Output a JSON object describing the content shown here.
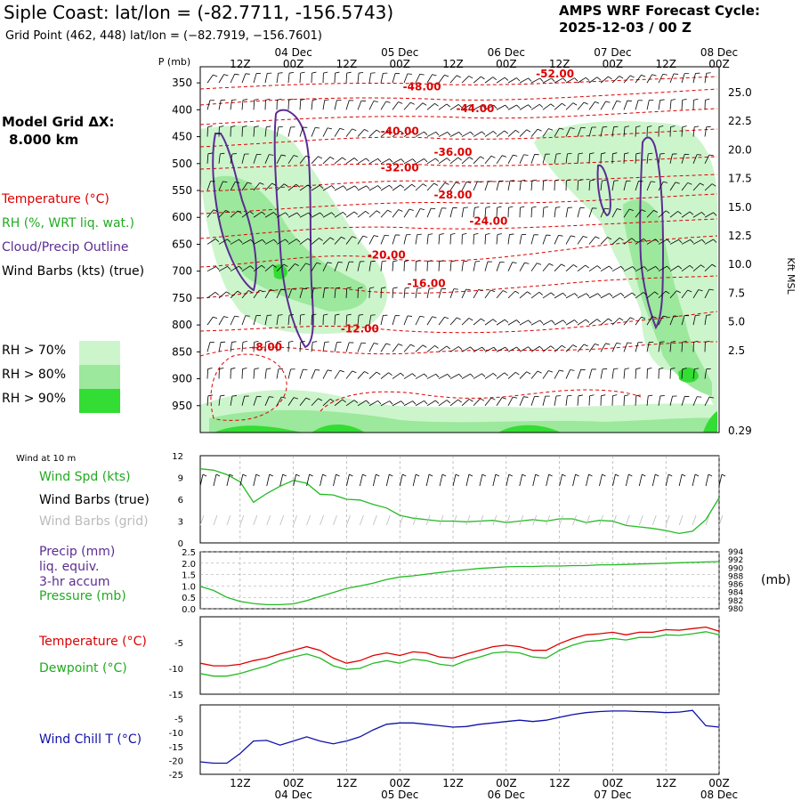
{
  "header": {
    "title": "Siple Coast:  lat/lon = (-82.7711, -156.5743)",
    "subtitle": "Grid Point (462, 448) lat/lon = (−82.7919, −156.7601)",
    "cycle_line1": "AMPS WRF Forecast Cycle:",
    "cycle_line2": "2025-12-03 / 00  Z",
    "grid_label_line1": "Model Grid ΔX:",
    "grid_label_line2": "8.000 km"
  },
  "legend": {
    "temperature": "Temperature (°C)",
    "rh": "RH (%, WRT liq. wat.)",
    "cloud": "Cloud/Precip Outline",
    "wind": "Wind Barbs (kts) (true)",
    "rh70": "RH > 70%",
    "rh80": "RH > 80%",
    "rh90": "RH > 90%"
  },
  "panel_labels": {
    "wind10": "Wind at 10 m",
    "wind_spd": "Wind Spd (kts)",
    "barbs_true": "Wind Barbs (true)",
    "barbs_grid": "Wind Barbs (grid)",
    "precip1": "Precip (mm)",
    "precip2": "liq. equiv.",
    "precip3": "3-hr accum",
    "pressure": "Pressure (mb)",
    "pressure_unit": "(mb)",
    "temperature": "Temperature (°C)",
    "dewpoint": "Dewpoint (°C)",
    "windchill": "Wind Chill T (°C)"
  },
  "colors": {
    "temp": "#dd0000",
    "rh_line": "#22bb22",
    "cloud": "#5b2d91",
    "windchill": "#1010aa",
    "rh70": "#ccf5cc",
    "rh80": "#9ce89c",
    "rh90": "#33dd33",
    "grid": "#999999",
    "barb_grid": "#bbbbbb"
  },
  "chart_data": {
    "time_axis": {
      "tick_hours": [
        12,
        24,
        36,
        48,
        60,
        72,
        84,
        96,
        108,
        120
      ],
      "tick_labels": [
        "12Z",
        "00Z",
        "12Z",
        "00Z",
        "12Z",
        "00Z",
        "12Z",
        "00Z",
        "12Z",
        "00Z"
      ],
      "date_labels": [
        {
          "hour": 24,
          "label": "04 Dec"
        },
        {
          "hour": 48,
          "label": "05 Dec"
        },
        {
          "hour": 72,
          "label": "06 Dec"
        },
        {
          "hour": 96,
          "label": "07 Dec"
        },
        {
          "hour": 120,
          "label": "08 Dec"
        }
      ],
      "range_hours": [
        3,
        120
      ]
    },
    "profile": {
      "type": "time-height",
      "ylabel": "P (mb)",
      "right_label": "Kft MSL",
      "pressure_ticks": [
        350,
        400,
        450,
        500,
        550,
        600,
        650,
        700,
        750,
        800,
        850,
        900,
        950
      ],
      "kft_ticks": [
        "25.0",
        "22.5",
        "20.0",
        "17.5",
        "15.0",
        "12.5",
        "10.0",
        "7.5",
        "5.0",
        "2.5",
        "0.29"
      ],
      "temperature_contours": [
        {
          "label": "-52.00",
          "hour": 83,
          "p": 333
        },
        {
          "label": "-48.00",
          "hour": 53,
          "p": 357
        },
        {
          "label": "-44.00",
          "hour": 65,
          "p": 398
        },
        {
          "label": "-40.00",
          "hour": 48,
          "p": 440
        },
        {
          "label": "-36.00",
          "hour": 60,
          "p": 479
        },
        {
          "label": "-32.00",
          "hour": 48,
          "p": 508
        },
        {
          "label": "-28.00",
          "hour": 60,
          "p": 558
        },
        {
          "label": "-24.00",
          "hour": 68,
          "p": 607
        },
        {
          "label": "-20.00",
          "hour": 45,
          "p": 670
        },
        {
          "label": "-16.00",
          "hour": 54,
          "p": 723
        },
        {
          "label": "-12.00",
          "hour": 39,
          "p": 807
        },
        {
          "label": "-8.00",
          "hour": 18,
          "p": 841
        }
      ]
    },
    "wind10": {
      "type": "line",
      "ylabel": "Wind Spd (kts)",
      "ylim": [
        0,
        12
      ],
      "yticks": [
        0,
        3,
        6,
        9,
        12
      ],
      "hours": [
        3,
        6,
        9,
        12,
        15,
        18,
        21,
        24,
        27,
        30,
        33,
        36,
        39,
        42,
        45,
        48,
        51,
        54,
        57,
        60,
        63,
        66,
        69,
        72,
        75,
        78,
        81,
        84,
        87,
        90,
        93,
        96,
        99,
        102,
        105,
        108,
        111,
        114,
        117,
        120
      ],
      "speed": [
        10.2,
        10.0,
        9.4,
        8.4,
        5.6,
        6.8,
        7.8,
        8.6,
        8.2,
        6.7,
        6.6,
        6.0,
        5.9,
        5.3,
        4.8,
        3.8,
        3.4,
        3.2,
        3.0,
        3.0,
        2.9,
        3.0,
        3.1,
        2.8,
        3.0,
        3.2,
        3.0,
        3.3,
        3.3,
        2.8,
        3.1,
        3.0,
        2.4,
        2.2,
        2.0,
        1.7,
        1.3,
        1.6,
        3.2,
        6.2
      ]
    },
    "precip_pressure": {
      "type": "line",
      "precip_ylabel": "Precip (mm)",
      "precip_ylim": [
        0,
        2.5
      ],
      "precip_ticks": [
        "0.0",
        "0.5",
        "1.0",
        "1.5",
        "2.0",
        "2.5"
      ],
      "pressure_ylim": [
        980,
        994
      ],
      "pressure_ticks": [
        "980",
        "982",
        "984",
        "986",
        "988",
        "990",
        "992",
        "994"
      ],
      "hours": [
        3,
        6,
        9,
        12,
        15,
        18,
        21,
        24,
        27,
        30,
        33,
        36,
        39,
        42,
        45,
        48,
        51,
        54,
        57,
        60,
        63,
        66,
        69,
        72,
        75,
        78,
        81,
        84,
        87,
        90,
        93,
        96,
        99,
        102,
        105,
        108,
        111,
        114,
        117,
        120
      ],
      "pressure": [
        985.5,
        984.5,
        982.8,
        981.8,
        981.3,
        981.0,
        981.0,
        981.2,
        982.0,
        983.0,
        984.0,
        985.0,
        985.6,
        986.3,
        987.2,
        987.8,
        988.1,
        988.5,
        988.9,
        989.3,
        989.6,
        989.9,
        990.1,
        990.3,
        990.4,
        990.4,
        990.5,
        990.5,
        990.6,
        990.6,
        990.8,
        990.8,
        990.9,
        991.0,
        991.1,
        991.2,
        991.3,
        991.4,
        991.5,
        991.6
      ]
    },
    "temp_dew": {
      "type": "line",
      "ylim": [
        -15,
        0
      ],
      "yticks": [
        -15,
        -10,
        -5
      ],
      "hours": [
        3,
        6,
        9,
        12,
        15,
        18,
        21,
        24,
        27,
        30,
        33,
        36,
        39,
        42,
        45,
        48,
        51,
        54,
        57,
        60,
        63,
        66,
        69,
        72,
        75,
        78,
        81,
        84,
        87,
        90,
        93,
        96,
        99,
        102,
        105,
        108,
        111,
        114,
        117,
        120
      ],
      "temperature": [
        -9.0,
        -9.5,
        -9.5,
        -9.2,
        -8.5,
        -8.0,
        -7.2,
        -6.5,
        -5.8,
        -6.5,
        -8.0,
        -9.0,
        -8.5,
        -7.5,
        -7.0,
        -7.5,
        -6.8,
        -7.0,
        -7.8,
        -8.0,
        -7.2,
        -6.5,
        -5.8,
        -5.5,
        -5.8,
        -6.5,
        -6.5,
        -5.2,
        -4.2,
        -3.5,
        -3.3,
        -3.0,
        -3.5,
        -3.0,
        -3.0,
        -2.5,
        -2.6,
        -2.3,
        -2.0,
        -2.8
      ],
      "dewpoint": [
        -11.0,
        -11.5,
        -11.5,
        -11.0,
        -10.2,
        -9.5,
        -8.5,
        -7.8,
        -7.2,
        -8.0,
        -9.5,
        -10.2,
        -10.0,
        -9.0,
        -8.5,
        -9.0,
        -8.2,
        -8.5,
        -9.2,
        -9.5,
        -8.5,
        -7.8,
        -7.0,
        -6.8,
        -7.0,
        -7.8,
        -8.0,
        -6.5,
        -5.5,
        -4.8,
        -4.6,
        -4.2,
        -4.5,
        -4.0,
        -4.0,
        -3.5,
        -3.6,
        -3.3,
        -2.9,
        -3.5
      ]
    },
    "windchill": {
      "type": "line",
      "ylim": [
        -25,
        0
      ],
      "yticks": [
        -25,
        -20,
        -15,
        -10,
        -5
      ],
      "hours": [
        3,
        6,
        9,
        12,
        15,
        18,
        21,
        24,
        27,
        30,
        33,
        36,
        39,
        42,
        45,
        48,
        51,
        54,
        57,
        60,
        63,
        66,
        69,
        72,
        75,
        78,
        81,
        84,
        87,
        90,
        93,
        96,
        99,
        102,
        105,
        108,
        111,
        114,
        117,
        120
      ],
      "windchill": [
        -20.5,
        -21.0,
        -21.0,
        -17.5,
        -13.0,
        -12.8,
        -14.5,
        -13.0,
        -11.5,
        -13.0,
        -14.0,
        -13.0,
        -11.5,
        -9.0,
        -7.0,
        -6.5,
        -6.5,
        -7.0,
        -7.5,
        -8.0,
        -7.8,
        -7.0,
        -6.5,
        -6.0,
        -5.5,
        -6.0,
        -5.5,
        -4.5,
        -3.5,
        -2.8,
        -2.4,
        -2.2,
        -2.2,
        -2.4,
        -2.5,
        -2.8,
        -2.6,
        -2.0,
        -7.5,
        -8.0
      ]
    }
  }
}
